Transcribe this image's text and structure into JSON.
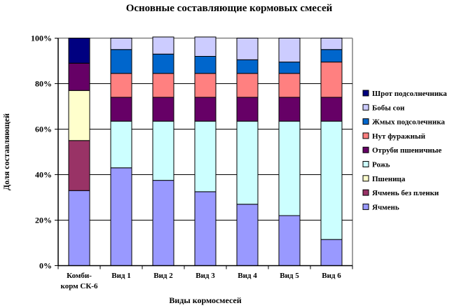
{
  "chart_data": {
    "type": "bar",
    "stacked": "percent",
    "title": "Основные составляющие кормовых смесей",
    "xlabel": "Виды кормосмесей",
    "ylabel": "Доля составляющей",
    "ylim": [
      0,
      100
    ],
    "yticks": [
      "0%",
      "20%",
      "40%",
      "60%",
      "80%",
      "100%"
    ],
    "grid": true,
    "legend_position": "right",
    "categories": [
      [
        "Комби-",
        "корм СК-6"
      ],
      [
        "Вид 1"
      ],
      [
        "Вид 2"
      ],
      [
        "Вид 3"
      ],
      [
        "Вид 4"
      ],
      [
        "Вид 5"
      ],
      [
        "Вид 6"
      ]
    ],
    "series": [
      {
        "name": "Ячмень",
        "color": "#9999FF",
        "values": [
          33,
          43,
          37.5,
          32.5,
          27,
          22,
          11.5
        ]
      },
      {
        "name": "Ячмень без пленки",
        "color": "#993366",
        "values": [
          22,
          0,
          0,
          0,
          0,
          0,
          0
        ]
      },
      {
        "name": "Пшеница",
        "color": "#FFFFCC",
        "values": [
          22,
          0,
          0,
          0,
          0,
          0,
          0
        ]
      },
      {
        "name": "Рожь",
        "color": "#CCFFFF",
        "values": [
          0,
          20.5,
          26,
          31,
          36.5,
          41.5,
          52
        ]
      },
      {
        "name": "Отруби пшеничные",
        "color": "#660066",
        "values": [
          12,
          10.5,
          10.5,
          10.5,
          10.5,
          10.5,
          10.5
        ]
      },
      {
        "name": "Нут фуражный",
        "color": "#FF8080",
        "values": [
          0,
          10.5,
          10.5,
          10.5,
          10.5,
          10.5,
          15.5
        ]
      },
      {
        "name": "Жмых подсолечника",
        "color": "#0066CC",
        "values": [
          0,
          10.5,
          8.5,
          7.5,
          6,
          5,
          5.5
        ]
      },
      {
        "name": "Бобы сои",
        "color": "#CCCCFF",
        "values": [
          0,
          5,
          7.5,
          8.5,
          9.5,
          10.5,
          5
        ]
      },
      {
        "name": "Шрот подсолнечника",
        "color": "#000080",
        "values": [
          11,
          0,
          0,
          0,
          0,
          0,
          0
        ]
      }
    ],
    "legend_order": [
      "Шрот подсолнечника",
      "Бобы сои",
      "Жмых подсолечника",
      "Нут фуражный",
      "Отруби пшеничные",
      "Рожь",
      "Пшеница",
      "Ячмень без пленки",
      "Ячмень"
    ]
  }
}
